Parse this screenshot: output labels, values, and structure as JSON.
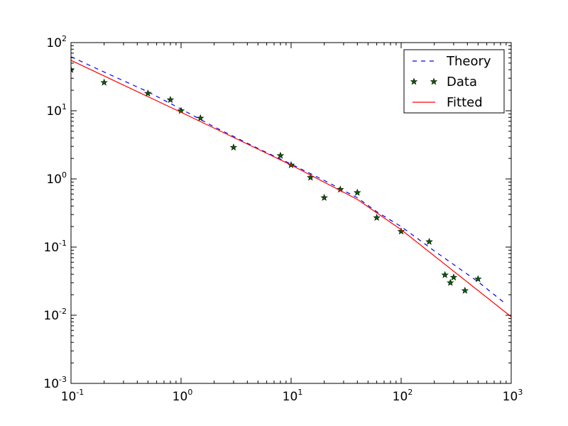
{
  "chart_data": {
    "type": "line",
    "title": "",
    "xlabel": "",
    "ylabel": "",
    "xscale": "log",
    "yscale": "log",
    "xlim": [
      0.1,
      1000
    ],
    "ylim": [
      0.001,
      100
    ],
    "x_ticks": [
      {
        "value": 0.1,
        "base": "10",
        "exp": "-1"
      },
      {
        "value": 1,
        "base": "10",
        "exp": "0"
      },
      {
        "value": 10,
        "base": "10",
        "exp": "1"
      },
      {
        "value": 100,
        "base": "10",
        "exp": "2"
      },
      {
        "value": 1000,
        "base": "10",
        "exp": "3"
      }
    ],
    "y_ticks": [
      {
        "value": 0.001,
        "base": "10",
        "exp": "-3"
      },
      {
        "value": 0.01,
        "base": "10",
        "exp": "-2"
      },
      {
        "value": 0.1,
        "base": "10",
        "exp": "-1"
      },
      {
        "value": 1,
        "base": "10",
        "exp": "0"
      },
      {
        "value": 10,
        "base": "10",
        "exp": "1"
      },
      {
        "value": 100,
        "base": "10",
        "exp": "2"
      }
    ],
    "grid": false,
    "legend_position": "top-right",
    "series": [
      {
        "name": "Theory",
        "style": "dashed-line",
        "color": "#0000ff",
        "x": [
          0.1,
          0.2,
          0.5,
          1,
          2,
          5,
          10,
          20,
          40,
          60,
          100,
          200,
          500,
          900
        ],
        "y": [
          62,
          37,
          19,
          10.6,
          5.8,
          2.8,
          1.65,
          0.95,
          0.53,
          0.33,
          0.2,
          0.088,
          0.031,
          0.0145
        ]
      },
      {
        "name": "Data",
        "style": "markers-star",
        "color": "#006400",
        "x": [
          0.1,
          0.2,
          0.5,
          0.8,
          1,
          1.5,
          3,
          8,
          10,
          15,
          20,
          28,
          40,
          60,
          100,
          180,
          250,
          280,
          300,
          380,
          500
        ],
        "y": [
          40,
          26,
          18,
          14.5,
          10,
          7.8,
          2.9,
          2.2,
          1.6,
          1.05,
          0.53,
          0.7,
          0.63,
          0.27,
          0.17,
          0.12,
          0.039,
          0.03,
          0.036,
          0.023,
          0.034
        ]
      },
      {
        "name": "Fitted",
        "style": "solid-line",
        "color": "#ff0000",
        "x": [
          0.1,
          1,
          10,
          40,
          100,
          1000
        ],
        "y": [
          55,
          9.5,
          1.6,
          0.5,
          0.18,
          0.0095
        ]
      }
    ]
  }
}
